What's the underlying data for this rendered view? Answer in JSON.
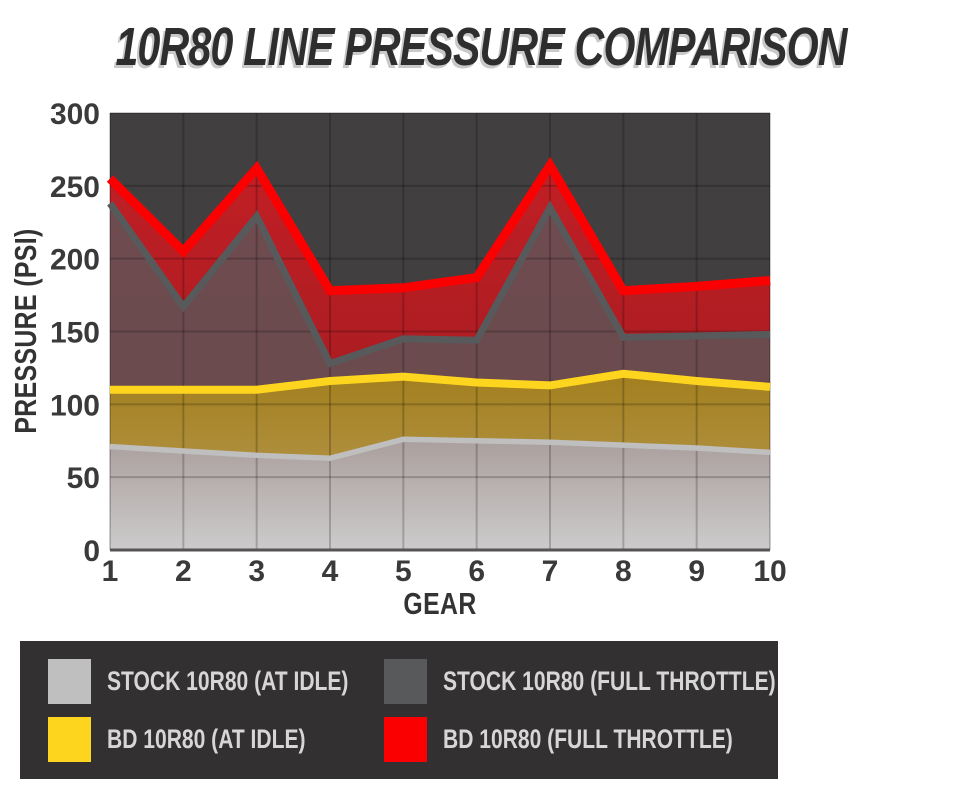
{
  "title": "10R80 LINE PRESSURE COMPARISON",
  "chart_data": {
    "type": "area",
    "title": "10R80 LINE PRESSURE COMPARISON",
    "x": [
      1,
      2,
      3,
      4,
      5,
      6,
      7,
      8,
      9,
      10
    ],
    "xlabel": "GEAR",
    "ylabel": "PRESSURE (PSI)",
    "ylim": [
      0,
      300
    ],
    "yticks": [
      0,
      50,
      100,
      150,
      200,
      250,
      300
    ],
    "grid": true,
    "legend_position": "bottom",
    "plot_background": "#413f40",
    "series": [
      {
        "id": "stock-idle",
        "name": "STOCK 10R80 (AT IDLE)",
        "color": "#c0bfbf",
        "values": [
          71,
          68,
          65,
          63,
          76,
          75,
          74,
          72,
          70,
          67
        ]
      },
      {
        "id": "bd-idle",
        "name": "BD 10R80 (AT IDLE)",
        "color": "#fed51e",
        "values": [
          110,
          110,
          110,
          116,
          119,
          115,
          113,
          121,
          116,
          112
        ]
      },
      {
        "id": "stock-full-throttle",
        "name": "STOCK 10R80 (FULL THROTTLE)",
        "color": "#58595b",
        "values": [
          238,
          167,
          229,
          128,
          145,
          144,
          235,
          146,
          147,
          148
        ]
      },
      {
        "id": "bd-full-throttle",
        "name": "BD 10R80 (FULL THROTTLE)",
        "color": "#fb0000",
        "values": [
          255,
          205,
          262,
          178,
          180,
          187,
          264,
          178,
          181,
          185
        ]
      }
    ]
  }
}
